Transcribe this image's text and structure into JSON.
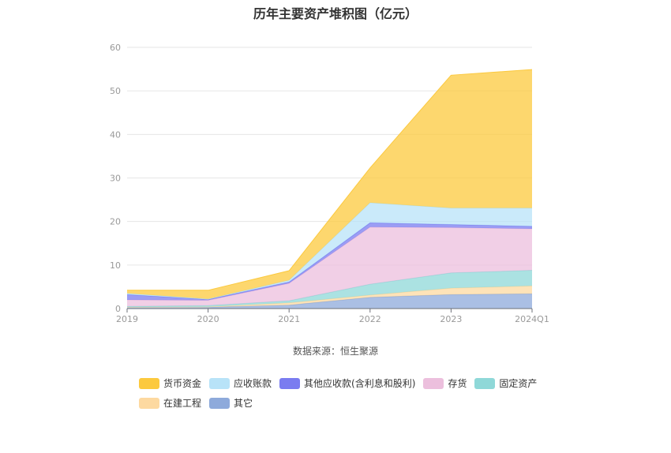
{
  "chart_data": {
    "type": "area",
    "stacked": true,
    "title": "历年主要资产堆积图（亿元）",
    "source": "数据来源：恒生聚源",
    "categories": [
      "2019",
      "2020",
      "2021",
      "2022",
      "2023",
      "2024Q1"
    ],
    "ylim": [
      0,
      60
    ],
    "yticks": [
      0,
      10,
      20,
      30,
      40,
      50,
      60
    ],
    "series": [
      {
        "name": "其它",
        "color": "#8eaadb",
        "values": [
          0.3,
          0.3,
          0.8,
          2.6,
          3.2,
          3.4
        ]
      },
      {
        "name": "在建工程",
        "color": "#fdd9a0",
        "values": [
          0.0,
          0.1,
          0.5,
          0.5,
          1.5,
          1.8
        ]
      },
      {
        "name": "固定资产",
        "color": "#8fd8d8",
        "values": [
          0.2,
          0.3,
          0.5,
          2.5,
          3.5,
          3.6
        ]
      },
      {
        "name": "存货",
        "color": "#ecbfdd",
        "values": [
          1.5,
          1.2,
          4.0,
          13.1,
          10.4,
          9.5
        ]
      },
      {
        "name": "其他应收款(含利息和股利)",
        "color": "#7a7cf0",
        "values": [
          1.2,
          0.2,
          0.3,
          1.0,
          0.7,
          0.6
        ]
      },
      {
        "name": "应收账款",
        "color": "#b8e3f8",
        "values": [
          0.3,
          0.1,
          0.4,
          4.6,
          3.8,
          4.2
        ]
      },
      {
        "name": "货币资金",
        "color": "#fcc93e",
        "values": [
          0.7,
          2.0,
          2.2,
          8.0,
          30.5,
          31.8
        ]
      }
    ],
    "legend_order": [
      "货币资金",
      "应收账款",
      "其他应收款(含利息和股利)",
      "存货",
      "固定资产",
      "在建工程",
      "其它"
    ],
    "legend_position": "bottom"
  }
}
